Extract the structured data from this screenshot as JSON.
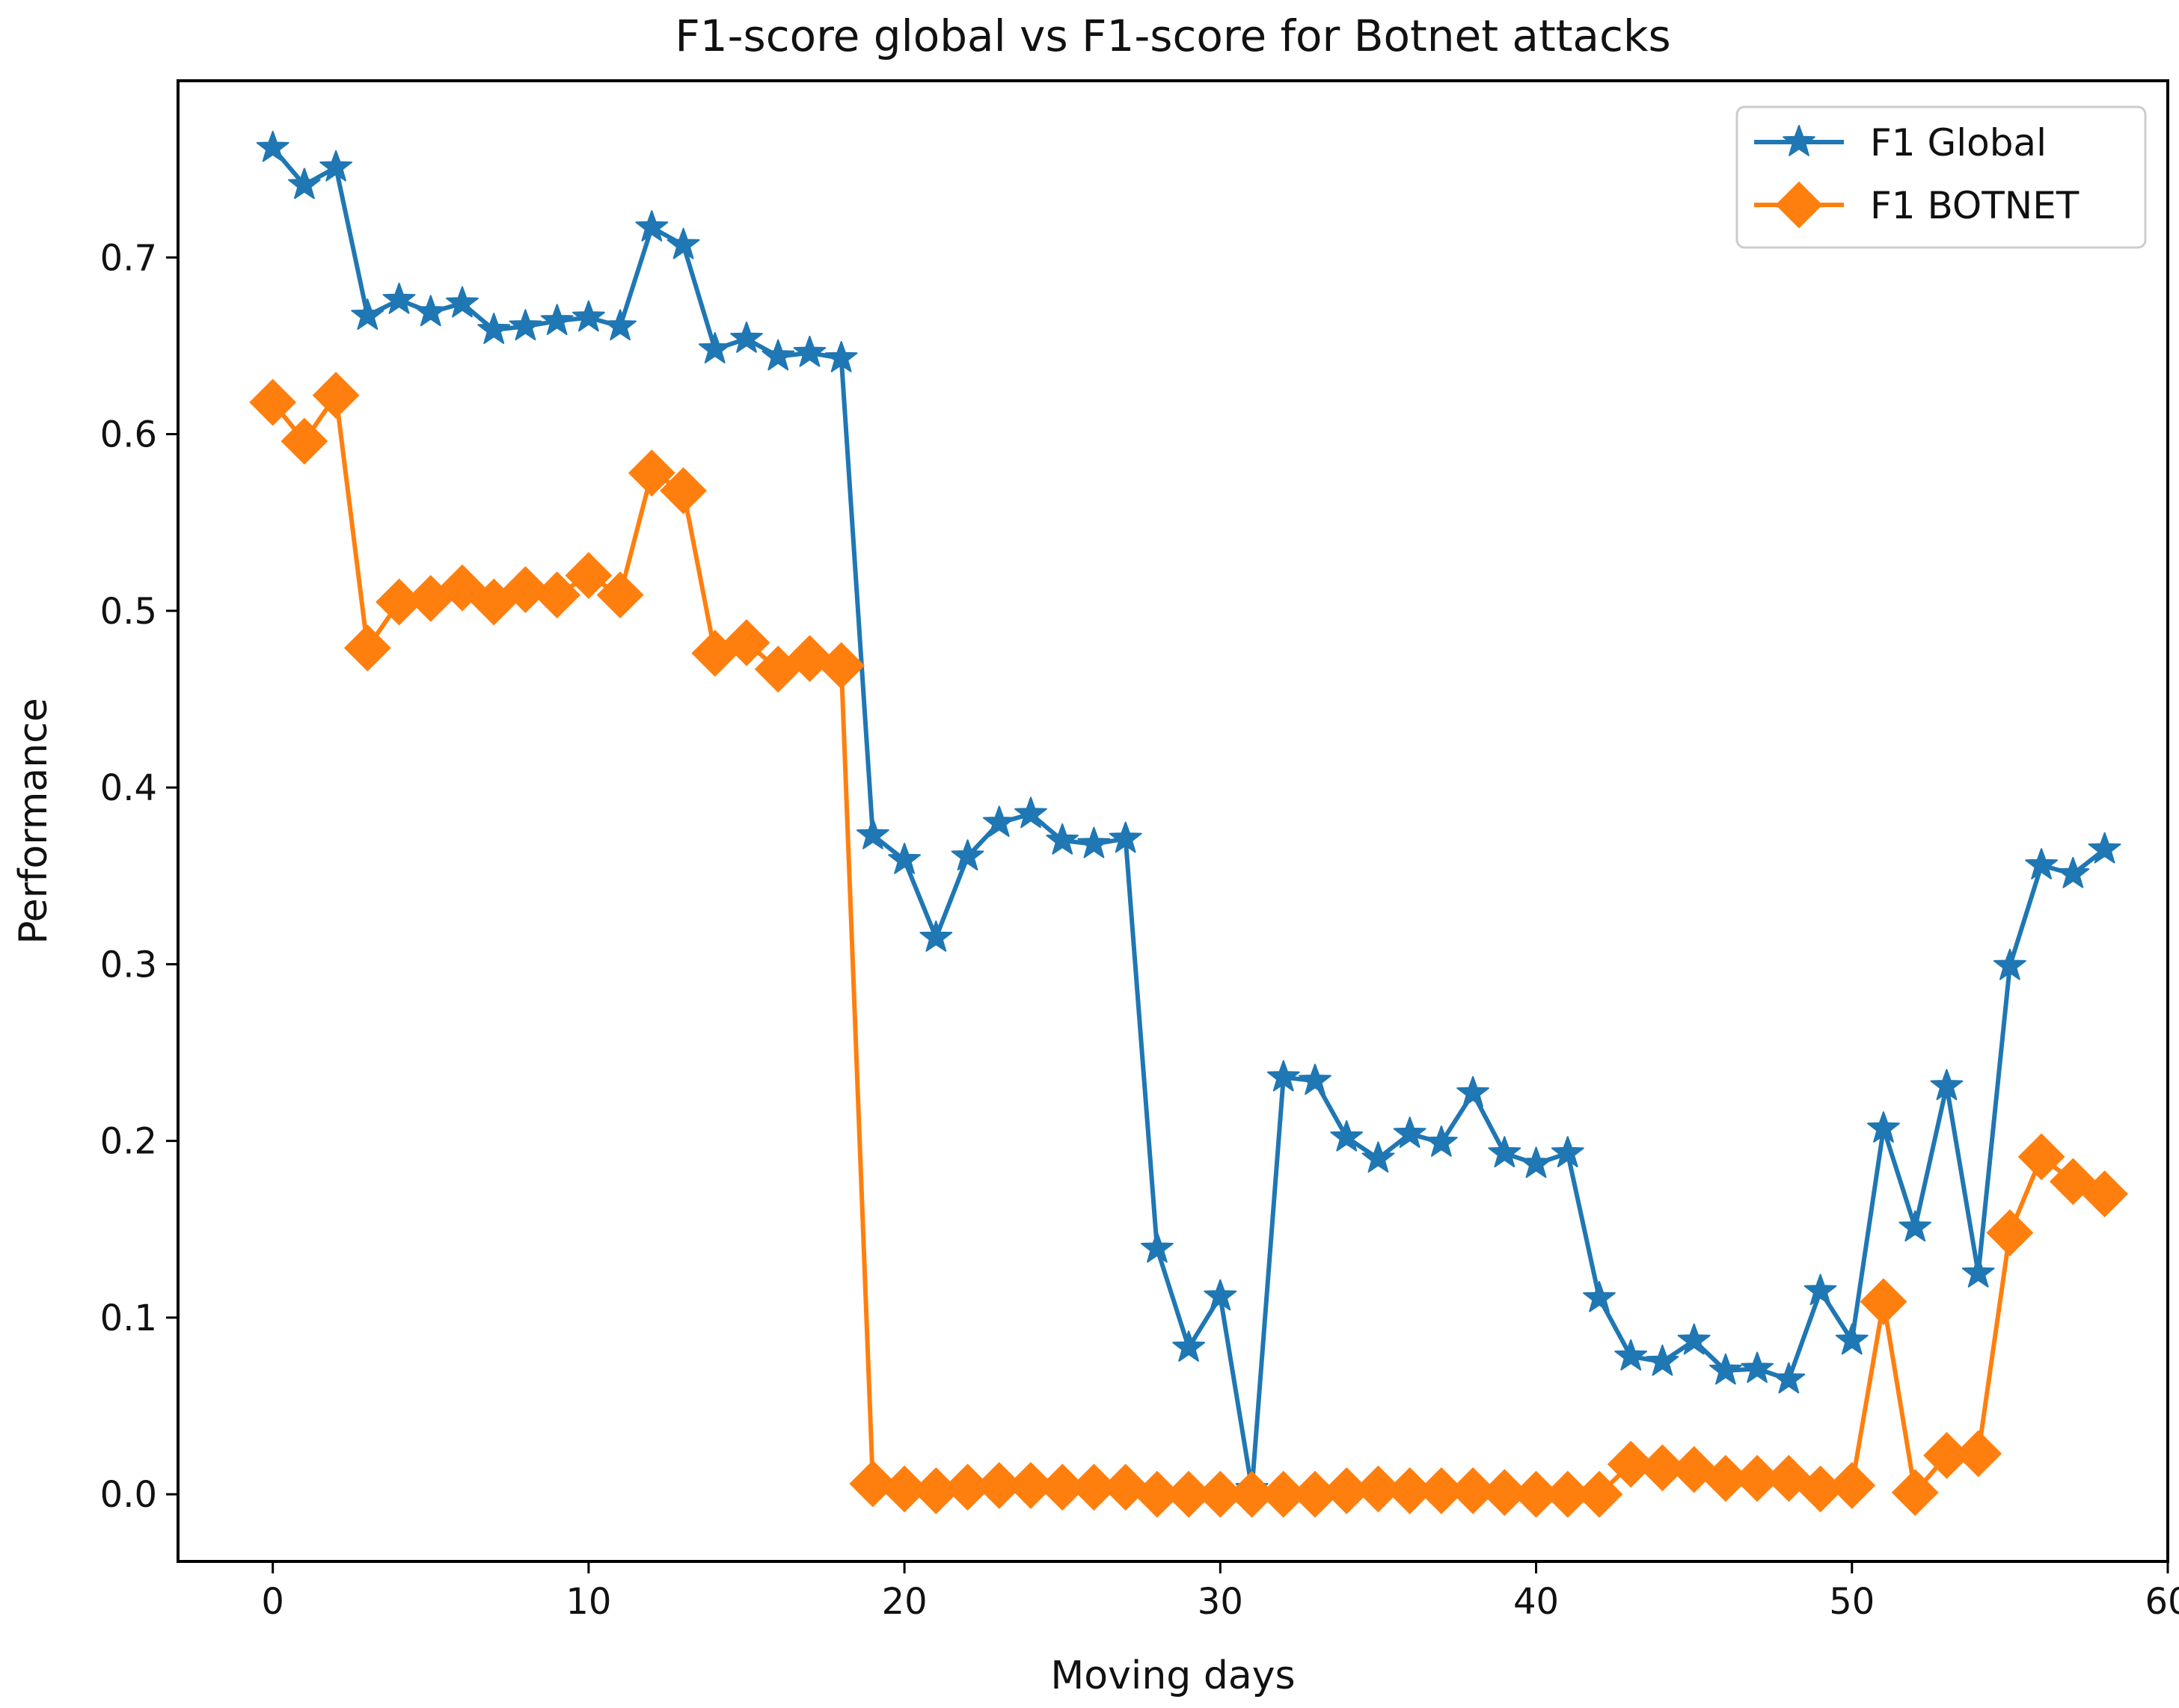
{
  "chart_data": {
    "type": "line",
    "title": "F1-score global vs F1-score for Botnet attacks",
    "xlabel": "Moving days",
    "ylabel": "Performance",
    "xlim": [
      -3,
      60
    ],
    "ylim": [
      -0.038,
      0.8
    ],
    "xticks": [
      0,
      10,
      20,
      30,
      40,
      50,
      60
    ],
    "xtick_labels": [
      "0",
      "10",
      "20",
      "30",
      "40",
      "50",
      "60"
    ],
    "yticks": [
      0.0,
      0.1,
      0.2,
      0.3,
      0.4,
      0.5,
      0.6,
      0.7
    ],
    "ytick_labels": [
      "0.0",
      "0.1",
      "0.2",
      "0.3",
      "0.4",
      "0.5",
      "0.6",
      "0.7"
    ],
    "grid": false,
    "legend_position": "top-right",
    "x": [
      0,
      1,
      2,
      3,
      4,
      5,
      6,
      7,
      8,
      9,
      10,
      11,
      12,
      13,
      14,
      15,
      16,
      17,
      18,
      19,
      20,
      21,
      22,
      23,
      24,
      25,
      26,
      27,
      28,
      29,
      30,
      31,
      32,
      33,
      34,
      35,
      36,
      37,
      38,
      39,
      40,
      41,
      42,
      43,
      44,
      45,
      46,
      47,
      48,
      49,
      50,
      51,
      52,
      53,
      54,
      55,
      56,
      57,
      58
    ],
    "series": [
      {
        "name": "F1 Global",
        "color": "#1f77b4",
        "marker": "star",
        "values": [
          0.762,
          0.741,
          0.751,
          0.667,
          0.676,
          0.669,
          0.674,
          0.659,
          0.661,
          0.664,
          0.666,
          0.661,
          0.717,
          0.707,
          0.648,
          0.654,
          0.644,
          0.646,
          0.643,
          0.373,
          0.359,
          0.315,
          0.361,
          0.38,
          0.385,
          0.37,
          0.368,
          0.371,
          0.139,
          0.083,
          0.112,
          0.003,
          0.236,
          0.234,
          0.202,
          0.19,
          0.204,
          0.199,
          0.227,
          0.193,
          0.187,
          0.193,
          0.111,
          0.078,
          0.075,
          0.087,
          0.07,
          0.071,
          0.065,
          0.115,
          0.087,
          0.207,
          0.151,
          0.231,
          0.125,
          0.299,
          0.356,
          0.351,
          0.365
        ]
      },
      {
        "name": "F1 BOTNET",
        "color": "#ff7f0e",
        "marker": "diamond",
        "values": [
          0.618,
          0.596,
          0.622,
          0.479,
          0.505,
          0.507,
          0.513,
          0.505,
          0.512,
          0.509,
          0.52,
          0.509,
          0.578,
          0.568,
          0.476,
          0.482,
          0.467,
          0.473,
          0.469,
          0.006,
          0.003,
          0.002,
          0.004,
          0.005,
          0.005,
          0.004,
          0.004,
          0.004,
          0.0,
          0.0,
          0.0,
          0.0,
          0.0,
          0.0,
          0.002,
          0.003,
          0.002,
          0.002,
          0.002,
          0.001,
          0.0,
          0.0,
          0.0,
          0.017,
          0.015,
          0.014,
          0.009,
          0.009,
          0.009,
          0.003,
          0.005,
          0.109,
          0.001,
          0.022,
          0.023,
          0.148,
          0.191,
          0.177,
          0.17
        ]
      }
    ]
  }
}
